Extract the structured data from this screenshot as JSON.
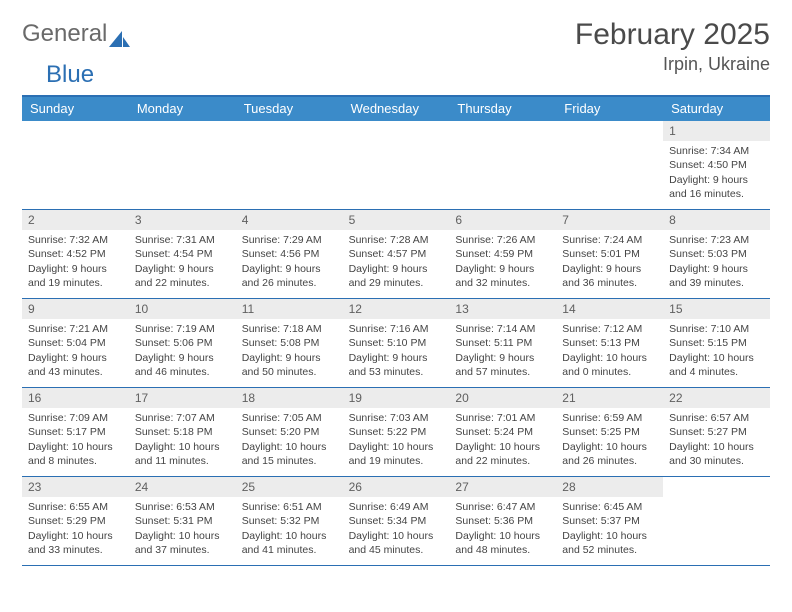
{
  "brand": {
    "part1": "General",
    "part2": "Blue"
  },
  "title": "February 2025",
  "location": "Irpin, Ukraine",
  "colors": {
    "header_bar": "#3b8bc9",
    "rule": "#2b6fb3",
    "daynum_bg": "#ececec",
    "text": "#444444",
    "title": "#4a4a4a"
  },
  "weekdays": [
    "Sunday",
    "Monday",
    "Tuesday",
    "Wednesday",
    "Thursday",
    "Friday",
    "Saturday"
  ],
  "weeks": [
    [
      null,
      null,
      null,
      null,
      null,
      null,
      {
        "n": "1",
        "sunrise": "7:34 AM",
        "sunset": "4:50 PM",
        "daylight": "9 hours and 16 minutes."
      }
    ],
    [
      {
        "n": "2",
        "sunrise": "7:32 AM",
        "sunset": "4:52 PM",
        "daylight": "9 hours and 19 minutes."
      },
      {
        "n": "3",
        "sunrise": "7:31 AM",
        "sunset": "4:54 PM",
        "daylight": "9 hours and 22 minutes."
      },
      {
        "n": "4",
        "sunrise": "7:29 AM",
        "sunset": "4:56 PM",
        "daylight": "9 hours and 26 minutes."
      },
      {
        "n": "5",
        "sunrise": "7:28 AM",
        "sunset": "4:57 PM",
        "daylight": "9 hours and 29 minutes."
      },
      {
        "n": "6",
        "sunrise": "7:26 AM",
        "sunset": "4:59 PM",
        "daylight": "9 hours and 32 minutes."
      },
      {
        "n": "7",
        "sunrise": "7:24 AM",
        "sunset": "5:01 PM",
        "daylight": "9 hours and 36 minutes."
      },
      {
        "n": "8",
        "sunrise": "7:23 AM",
        "sunset": "5:03 PM",
        "daylight": "9 hours and 39 minutes."
      }
    ],
    [
      {
        "n": "9",
        "sunrise": "7:21 AM",
        "sunset": "5:04 PM",
        "daylight": "9 hours and 43 minutes."
      },
      {
        "n": "10",
        "sunrise": "7:19 AM",
        "sunset": "5:06 PM",
        "daylight": "9 hours and 46 minutes."
      },
      {
        "n": "11",
        "sunrise": "7:18 AM",
        "sunset": "5:08 PM",
        "daylight": "9 hours and 50 minutes."
      },
      {
        "n": "12",
        "sunrise": "7:16 AM",
        "sunset": "5:10 PM",
        "daylight": "9 hours and 53 minutes."
      },
      {
        "n": "13",
        "sunrise": "7:14 AM",
        "sunset": "5:11 PM",
        "daylight": "9 hours and 57 minutes."
      },
      {
        "n": "14",
        "sunrise": "7:12 AM",
        "sunset": "5:13 PM",
        "daylight": "10 hours and 0 minutes."
      },
      {
        "n": "15",
        "sunrise": "7:10 AM",
        "sunset": "5:15 PM",
        "daylight": "10 hours and 4 minutes."
      }
    ],
    [
      {
        "n": "16",
        "sunrise": "7:09 AM",
        "sunset": "5:17 PM",
        "daylight": "10 hours and 8 minutes."
      },
      {
        "n": "17",
        "sunrise": "7:07 AM",
        "sunset": "5:18 PM",
        "daylight": "10 hours and 11 minutes."
      },
      {
        "n": "18",
        "sunrise": "7:05 AM",
        "sunset": "5:20 PM",
        "daylight": "10 hours and 15 minutes."
      },
      {
        "n": "19",
        "sunrise": "7:03 AM",
        "sunset": "5:22 PM",
        "daylight": "10 hours and 19 minutes."
      },
      {
        "n": "20",
        "sunrise": "7:01 AM",
        "sunset": "5:24 PM",
        "daylight": "10 hours and 22 minutes."
      },
      {
        "n": "21",
        "sunrise": "6:59 AM",
        "sunset": "5:25 PM",
        "daylight": "10 hours and 26 minutes."
      },
      {
        "n": "22",
        "sunrise": "6:57 AM",
        "sunset": "5:27 PM",
        "daylight": "10 hours and 30 minutes."
      }
    ],
    [
      {
        "n": "23",
        "sunrise": "6:55 AM",
        "sunset": "5:29 PM",
        "daylight": "10 hours and 33 minutes."
      },
      {
        "n": "24",
        "sunrise": "6:53 AM",
        "sunset": "5:31 PM",
        "daylight": "10 hours and 37 minutes."
      },
      {
        "n": "25",
        "sunrise": "6:51 AM",
        "sunset": "5:32 PM",
        "daylight": "10 hours and 41 minutes."
      },
      {
        "n": "26",
        "sunrise": "6:49 AM",
        "sunset": "5:34 PM",
        "daylight": "10 hours and 45 minutes."
      },
      {
        "n": "27",
        "sunrise": "6:47 AM",
        "sunset": "5:36 PM",
        "daylight": "10 hours and 48 minutes."
      },
      {
        "n": "28",
        "sunrise": "6:45 AM",
        "sunset": "5:37 PM",
        "daylight": "10 hours and 52 minutes."
      },
      null
    ]
  ],
  "labels": {
    "sunrise": "Sunrise: ",
    "sunset": "Sunset: ",
    "daylight": "Daylight: "
  }
}
